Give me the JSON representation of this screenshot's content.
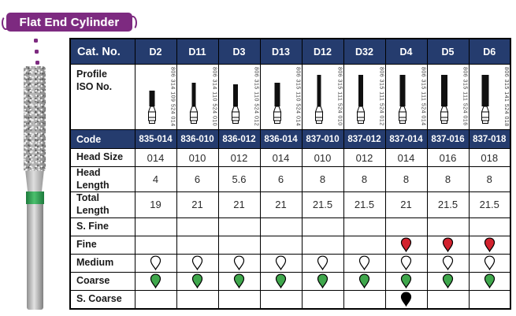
{
  "banner": {
    "title": "Flat End Cylinder"
  },
  "colors": {
    "banner_purple": "#7d2a80",
    "header_navy": "#253c6e",
    "bur_band_green": "#2f9e4f",
    "drop_green": "#3fa74c",
    "drop_red": "#d2222e",
    "drop_black": "#000000",
    "drop_white": "#ffffff"
  },
  "table": {
    "cat_no_label": "Cat. No.",
    "profile_label_line1": "Profile",
    "profile_label_line2": "ISO No.",
    "columns": [
      "D2",
      "D11",
      "D3",
      "D13",
      "D12",
      "D32",
      "D4",
      "D5",
      "D6"
    ],
    "iso_numbers": [
      "806 314 109 524 014",
      "806 314 110 524 010",
      "806 315 110 524 012",
      "806 315 110 524 014",
      "806 315 111 524 010",
      "806 315 111 524 012",
      "806 315 111 524 014",
      "806 315 111 524 016",
      "806 315 141 524 018"
    ],
    "rows": [
      {
        "id": "code",
        "label": "Code",
        "type": "code",
        "values": [
          "835-014",
          "836-010",
          "836-012",
          "836-014",
          "837-010",
          "837-012",
          "837-014",
          "837-016",
          "837-018"
        ]
      },
      {
        "id": "head-size",
        "label": "Head Size",
        "type": "text",
        "values": [
          "014",
          "010",
          "012",
          "014",
          "010",
          "012",
          "014",
          "016",
          "018"
        ]
      },
      {
        "id": "head-length",
        "label": "Head Length",
        "type": "text",
        "values": [
          "4",
          "6",
          "5.6",
          "6",
          "8",
          "8",
          "8",
          "8",
          "8"
        ]
      },
      {
        "id": "total-length",
        "label": "Total Length",
        "type": "text",
        "values": [
          "19",
          "21",
          "21",
          "21",
          "21.5",
          "21.5",
          "21",
          "21.5",
          "21.5"
        ]
      },
      {
        "id": "s-fine",
        "label": "S. Fine",
        "type": "drops",
        "values": [
          "",
          "",
          "",
          "",
          "",
          "",
          "",
          "",
          ""
        ]
      },
      {
        "id": "fine",
        "label": "Fine",
        "type": "drops",
        "values": [
          "",
          "",
          "",
          "",
          "",
          "",
          "red",
          "red",
          "red"
        ]
      },
      {
        "id": "medium",
        "label": "Medium",
        "type": "drops",
        "values": [
          "white",
          "white",
          "white",
          "white",
          "white",
          "white",
          "white",
          "white",
          "white"
        ]
      },
      {
        "id": "coarse",
        "label": "Coarse",
        "type": "drops",
        "values": [
          "green",
          "green",
          "green",
          "green",
          "green",
          "green",
          "green",
          "green",
          "green"
        ]
      },
      {
        "id": "s-coarse",
        "label": "S. Coarse",
        "type": "drops",
        "values": [
          "",
          "",
          "",
          "",
          "",
          "",
          "black",
          "",
          ""
        ]
      }
    ]
  }
}
